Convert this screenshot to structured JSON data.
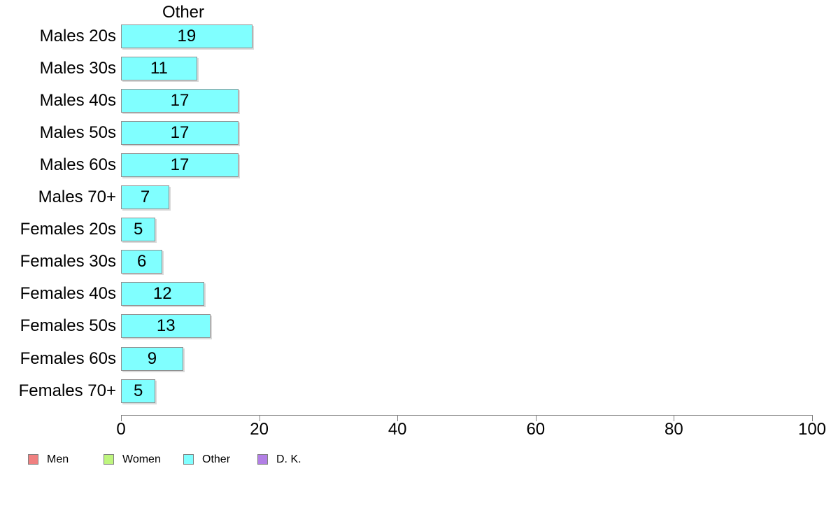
{
  "chart_data": {
    "type": "bar",
    "orientation": "horizontal",
    "title": "Other",
    "categories": [
      "Males 20s",
      "Males 30s",
      "Males 40s",
      "Males 50s",
      "Males 60s",
      "Males 70+",
      "Females 20s",
      "Females 30s",
      "Females 40s",
      "Females 50s",
      "Females 60s",
      "Females 70+"
    ],
    "values": [
      19,
      11,
      17,
      17,
      17,
      7,
      5,
      6,
      12,
      13,
      9,
      5
    ],
    "value_labels": [
      "19",
      "11",
      "17",
      "17",
      "17",
      "7",
      "5",
      "6",
      "12",
      "13",
      "9",
      "5"
    ],
    "xlim": [
      0,
      100
    ],
    "x_ticks": [
      "0",
      "20",
      "40",
      "60",
      "80",
      "100"
    ],
    "x_tick_values": [
      0,
      20,
      40,
      60,
      80,
      100
    ],
    "grid": false,
    "colors": {
      "bar_fill": "#80ffff",
      "bar_border": "#909090",
      "axis": "#808080",
      "text": "#000000"
    },
    "legend": {
      "position": "bottom-left",
      "items": [
        {
          "label": "Men",
          "color": "#f08080"
        },
        {
          "label": "Women",
          "color": "#bef57e"
        },
        {
          "label": "Other",
          "color": "#80ffff"
        },
        {
          "label": "D. K.",
          "color": "#b27fe5"
        }
      ]
    }
  }
}
